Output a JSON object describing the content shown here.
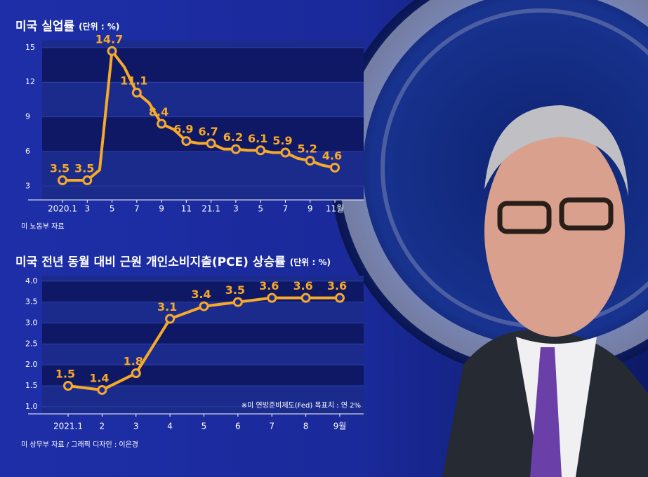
{
  "chart_data": [
    {
      "type": "line",
      "title": "미국 실업률",
      "subtitle": "(단위 : %)",
      "source": "미 노동부 자료",
      "categories": [
        "2020.1",
        null,
        "3",
        null,
        "5",
        null,
        "7",
        null,
        "9",
        null,
        "11",
        null,
        "21.1",
        null,
        "3",
        null,
        "5",
        null,
        "7",
        null,
        "9",
        null,
        "11월"
      ],
      "values": [
        3.5,
        3.5,
        3.5,
        4.4,
        14.7,
        13.3,
        11.1,
        10.2,
        8.4,
        7.9,
        6.9,
        6.7,
        6.7,
        6.2,
        6.2,
        6.1,
        6.1,
        5.9,
        5.9,
        5.4,
        5.2,
        4.8,
        4.6
      ],
      "color": "#f7a928",
      "ylim": [
        1.8,
        15.6
      ],
      "yticks": [
        3,
        6,
        9,
        12,
        15
      ]
    },
    {
      "type": "line",
      "title": "미국 전년 동월 대비 근원 개인소비지출(PCE) 상승률",
      "subtitle": "(단위 : %)",
      "source": "미 상무부 자료 / 그래픽 디자인 : 이은경",
      "annotation": "※미 연방준비제도(Fed) 목표치 : 연 2%",
      "categories": [
        "2021.1",
        "2",
        "3",
        "4",
        "5",
        "6",
        "7",
        "8",
        "9월"
      ],
      "values": [
        1.5,
        1.4,
        1.8,
        3.1,
        3.4,
        3.5,
        3.6,
        3.6,
        3.6
      ],
      "color": "#f7a928",
      "ylim": [
        0.83,
        4.13
      ],
      "yticks": [
        {
          "value": 1,
          "label": "1.0"
        },
        1.5,
        {
          "value": 2,
          "label": "2.0"
        },
        2.5,
        {
          "value": 3,
          "label": "3.0"
        },
        3.5,
        {
          "value": 4,
          "label": "4.0"
        }
      ]
    }
  ]
}
